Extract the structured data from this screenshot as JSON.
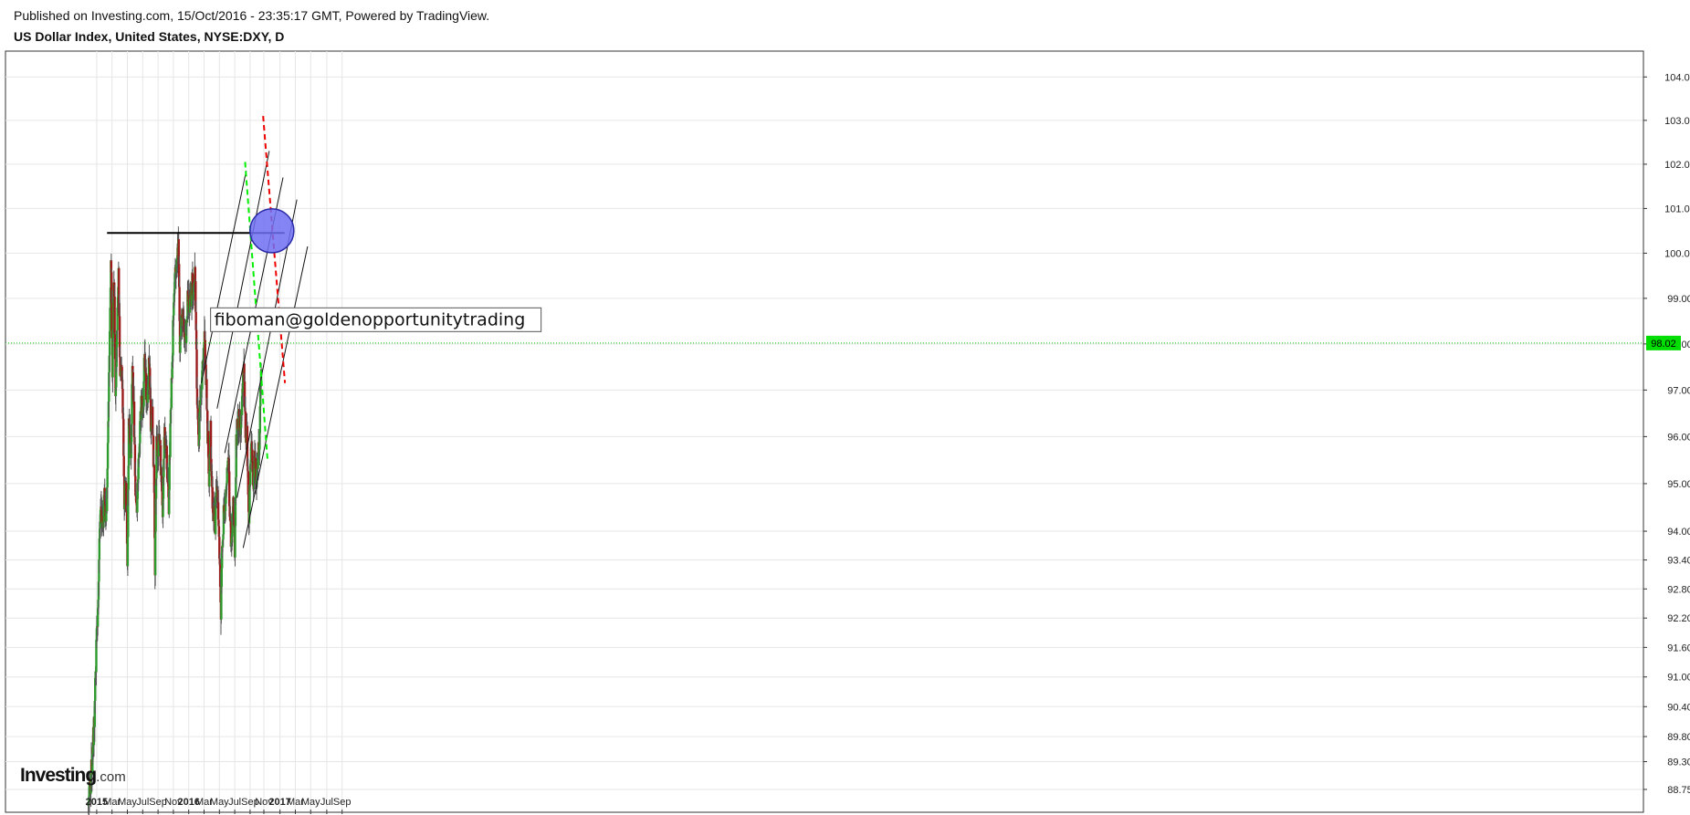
{
  "header": {
    "published": "Published on Investing.com, 15/Oct/2016 - 23:35:17 GMT, Powered by TradingView.",
    "symbol": "US Dollar Index, United States, NYSE:DXY, D"
  },
  "logo": {
    "brand": "Investing",
    "suffix": ".com"
  },
  "colors": {
    "bull": "#2e9a2e",
    "bear": "#9a1c1c",
    "wick": "#555555",
    "grid": "#e6e6e6",
    "current": "#00cc00",
    "green_dash": "#00ee00",
    "red_dash": "#ee0000",
    "circle_fill": "#6f6ff2",
    "circle_stroke": "#2a2aa8"
  },
  "chart_data": {
    "type": "candlestick",
    "title": "US Dollar Index, United States, NYSE:DXY, D",
    "x_ticks": [
      {
        "label": "2015",
        "t": 0.5
      },
      {
        "label": "Mar",
        "t": 2.5
      },
      {
        "label": "May",
        "t": 4.5
      },
      {
        "label": "Jul",
        "t": 6.5
      },
      {
        "label": "Sep",
        "t": 8.5
      },
      {
        "label": "Nov",
        "t": 10.5
      },
      {
        "label": "2016",
        "t": 12.5
      },
      {
        "label": "Mar",
        "t": 14.5
      },
      {
        "label": "May",
        "t": 16.5
      },
      {
        "label": "Jul",
        "t": 18.5
      },
      {
        "label": "Sep",
        "t": 20.5
      },
      {
        "label": "Nov",
        "t": 22.3
      },
      {
        "label": "2017",
        "t": 24.4
      },
      {
        "label": "Mar",
        "t": 26.4
      },
      {
        "label": "May",
        "t": 28.4
      },
      {
        "label": "Jul",
        "t": 30.5
      },
      {
        "label": "Sep",
        "t": 32.5
      }
    ],
    "y_ticks": [
      88.75,
      89.3,
      89.8,
      90.4,
      91.0,
      91.6,
      92.2,
      92.8,
      93.4,
      94.0,
      95.0,
      96.0,
      97.0,
      98.0,
      99.0,
      100.0,
      101.0,
      102.0,
      103.0,
      104.0
    ],
    "last_price": 98.02,
    "x_range_months": [
      -0.7,
      35.6
    ],
    "y_scale": "log",
    "annotation": {
      "text": "fiboman@goldenopportunitytrading",
      "t": 15.35,
      "y": 98.55
    },
    "horizontal_line": {
      "t1": 1.85,
      "t2": 25.0,
      "y": 100.45
    },
    "channel_lines": [
      {
        "t1": 14.15,
        "y1": 97.15,
        "t2": 20.0,
        "y2": 101.85
      },
      {
        "t1": 16.2,
        "y1": 96.6,
        "t2": 23.0,
        "y2": 102.3
      },
      {
        "t1": 17.2,
        "y1": 95.65,
        "t2": 24.8,
        "y2": 101.7
      },
      {
        "t1": 18.8,
        "y1": 94.7,
        "t2": 26.6,
        "y2": 101.2
      },
      {
        "t1": 19.6,
        "y1": 93.65,
        "t2": 28.0,
        "y2": 100.15
      }
    ],
    "green_dashed_line": {
      "t1": 19.85,
      "y1": 102.05,
      "t2": 22.8,
      "y2": 95.45
    },
    "red_dashed_line": {
      "t1": 22.2,
      "y1": 103.1,
      "t2": 25.05,
      "y2": 97.15
    },
    "circle_marker": {
      "t": 23.35,
      "y": 100.5
    },
    "close_path": [
      {
        "t": -0.6,
        "y": 88.45
      },
      {
        "t": -0.3,
        "y": 88.9
      },
      {
        "t": -0.1,
        "y": 89.3
      },
      {
        "t": 0.2,
        "y": 90.2
      },
      {
        "t": 0.45,
        "y": 91.6
      },
      {
        "t": 0.75,
        "y": 93.0
      },
      {
        "t": 1.0,
        "y": 94.6
      },
      {
        "t": 1.3,
        "y": 94.1
      },
      {
        "t": 1.55,
        "y": 94.8
      },
      {
        "t": 1.75,
        "y": 94.3
      },
      {
        "t": 1.9,
        "y": 95.3
      },
      {
        "t": 2.15,
        "y": 97.8
      },
      {
        "t": 2.35,
        "y": 100.0
      },
      {
        "t": 2.55,
        "y": 97.3
      },
      {
        "t": 2.75,
        "y": 99.6
      },
      {
        "t": 2.95,
        "y": 96.9
      },
      {
        "t": 3.15,
        "y": 98.3
      },
      {
        "t": 3.35,
        "y": 99.4
      },
      {
        "t": 3.55,
        "y": 97.4
      },
      {
        "t": 3.75,
        "y": 97.5
      },
      {
        "t": 3.95,
        "y": 96.1
      },
      {
        "t": 4.1,
        "y": 94.6
      },
      {
        "t": 4.3,
        "y": 95.0
      },
      {
        "t": 4.5,
        "y": 93.3
      },
      {
        "t": 4.7,
        "y": 96.3
      },
      {
        "t": 4.95,
        "y": 95.6
      },
      {
        "t": 5.15,
        "y": 97.3
      },
      {
        "t": 5.35,
        "y": 96.6
      },
      {
        "t": 5.55,
        "y": 95.0
      },
      {
        "t": 5.75,
        "y": 94.6
      },
      {
        "t": 5.95,
        "y": 95.4
      },
      {
        "t": 6.15,
        "y": 96.3
      },
      {
        "t": 6.35,
        "y": 96.9
      },
      {
        "t": 6.55,
        "y": 96.6
      },
      {
        "t": 6.75,
        "y": 97.8
      },
      {
        "t": 6.95,
        "y": 97.0
      },
      {
        "t": 7.15,
        "y": 96.8
      },
      {
        "t": 7.35,
        "y": 97.8
      },
      {
        "t": 7.55,
        "y": 96.3
      },
      {
        "t": 7.75,
        "y": 96.5
      },
      {
        "t": 7.95,
        "y": 95.2
      },
      {
        "t": 8.1,
        "y": 93.2
      },
      {
        "t": 8.3,
        "y": 96.1
      },
      {
        "t": 8.5,
        "y": 95.6
      },
      {
        "t": 8.7,
        "y": 96.0
      },
      {
        "t": 8.9,
        "y": 95.2
      },
      {
        "t": 9.1,
        "y": 94.3
      },
      {
        "t": 9.3,
        "y": 96.0
      },
      {
        "t": 9.5,
        "y": 95.9
      },
      {
        "t": 9.7,
        "y": 95.2
      },
      {
        "t": 9.9,
        "y": 94.5
      },
      {
        "t": 10.1,
        "y": 96.2
      },
      {
        "t": 10.3,
        "y": 97.3
      },
      {
        "t": 10.5,
        "y": 98.6
      },
      {
        "t": 10.7,
        "y": 99.4
      },
      {
        "t": 10.9,
        "y": 99.9
      },
      {
        "t": 11.15,
        "y": 100.2
      },
      {
        "t": 11.35,
        "y": 97.8
      },
      {
        "t": 11.55,
        "y": 98.4
      },
      {
        "t": 11.75,
        "y": 98.6
      },
      {
        "t": 11.95,
        "y": 98.0
      },
      {
        "t": 12.15,
        "y": 98.1
      },
      {
        "t": 12.35,
        "y": 99.1
      },
      {
        "t": 12.55,
        "y": 99.0
      },
      {
        "t": 12.75,
        "y": 98.8
      },
      {
        "t": 12.95,
        "y": 99.3
      },
      {
        "t": 13.15,
        "y": 99.0
      },
      {
        "t": 13.35,
        "y": 99.6
      },
      {
        "t": 13.55,
        "y": 97.0
      },
      {
        "t": 13.75,
        "y": 95.8
      },
      {
        "t": 13.95,
        "y": 96.6
      },
      {
        "t": 14.15,
        "y": 97.1
      },
      {
        "t": 14.35,
        "y": 97.7
      },
      {
        "t": 14.55,
        "y": 98.3
      },
      {
        "t": 14.75,
        "y": 97.3
      },
      {
        "t": 14.95,
        "y": 96.1
      },
      {
        "t": 15.15,
        "y": 95.1
      },
      {
        "t": 15.35,
        "y": 96.1
      },
      {
        "t": 15.55,
        "y": 94.8
      },
      {
        "t": 15.75,
        "y": 94.4
      },
      {
        "t": 15.95,
        "y": 94.2
      },
      {
        "t": 16.15,
        "y": 94.9
      },
      {
        "t": 16.35,
        "y": 94.5
      },
      {
        "t": 16.55,
        "y": 93.2
      },
      {
        "t": 16.7,
        "y": 92.3
      },
      {
        "t": 16.9,
        "y": 93.8
      },
      {
        "t": 17.1,
        "y": 94.6
      },
      {
        "t": 17.3,
        "y": 94.4
      },
      {
        "t": 17.5,
        "y": 95.3
      },
      {
        "t": 17.7,
        "y": 95.5
      },
      {
        "t": 17.9,
        "y": 94.1
      },
      {
        "t": 18.1,
        "y": 93.6
      },
      {
        "t": 18.3,
        "y": 94.6
      },
      {
        "t": 18.5,
        "y": 93.6
      },
      {
        "t": 18.7,
        "y": 95.9
      },
      {
        "t": 18.9,
        "y": 96.2
      },
      {
        "t": 19.1,
        "y": 96.5
      },
      {
        "t": 19.3,
        "y": 96.1
      },
      {
        "t": 19.5,
        "y": 96.9
      },
      {
        "t": 19.7,
        "y": 97.5
      },
      {
        "t": 19.9,
        "y": 95.9
      },
      {
        "t": 20.1,
        "y": 96.1
      },
      {
        "t": 20.3,
        "y": 94.2
      },
      {
        "t": 20.5,
        "y": 95.1
      },
      {
        "t": 20.7,
        "y": 95.8
      },
      {
        "t": 20.9,
        "y": 94.8
      },
      {
        "t": 21.1,
        "y": 95.6
      },
      {
        "t": 21.3,
        "y": 95.2
      },
      {
        "t": 21.5,
        "y": 95.4
      },
      {
        "t": 21.7,
        "y": 95.9
      },
      {
        "t": 21.9,
        "y": 97.1
      },
      {
        "t": 22.0,
        "y": 98.0
      }
    ]
  }
}
